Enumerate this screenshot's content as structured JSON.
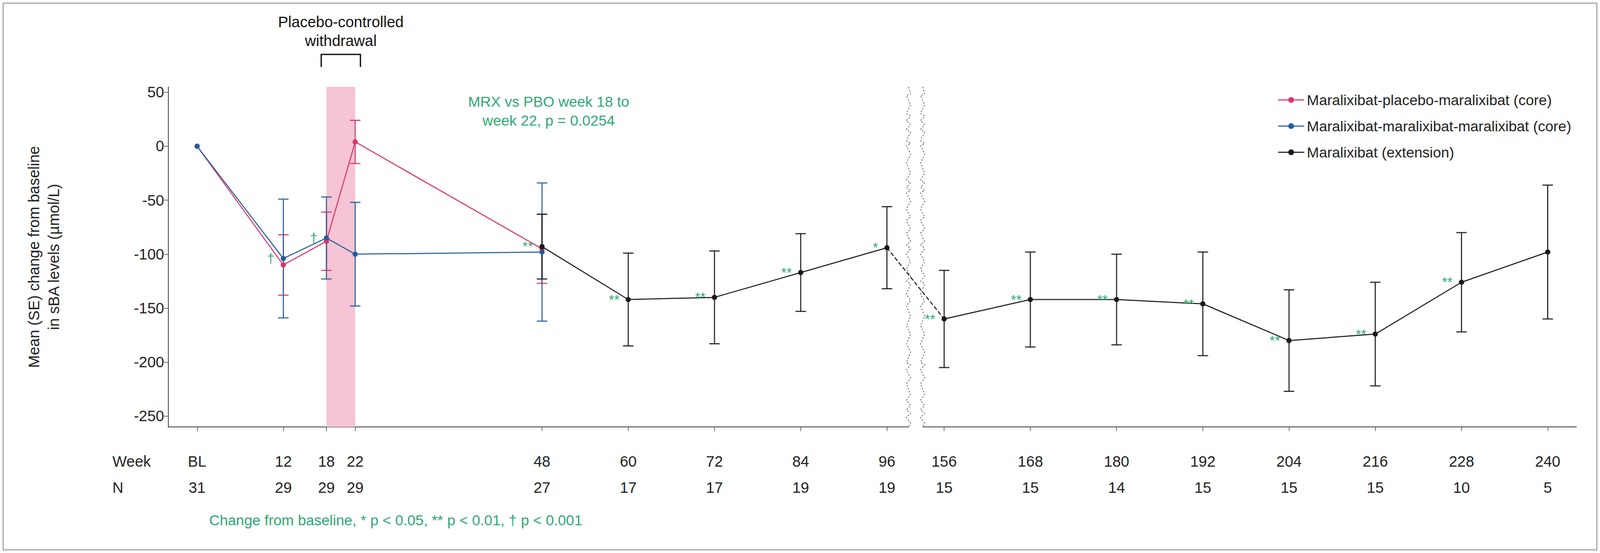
{
  "chart_data": {
    "type": "line",
    "ylabel": "Mean (SE) change from baseline\nin sBA levels (µmol/L)",
    "xlabel": "Week",
    "n_label": "N",
    "n": [
      31,
      29,
      29,
      29,
      27,
      17,
      17,
      19,
      19,
      15,
      15,
      14,
      15,
      15,
      15,
      10,
      5
    ],
    "xlim": [
      -4,
      244
    ],
    "xticks": [
      {
        "value": 0,
        "label": "BL"
      },
      12,
      18,
      22,
      48,
      60,
      72,
      84,
      96,
      156,
      168,
      180,
      192,
      204,
      216,
      228,
      240
    ],
    "xbreak": [
      99,
      153
    ],
    "ylim": [
      -260,
      55
    ],
    "yticks": [
      50,
      0,
      -50,
      -100,
      -150,
      -200,
      -250
    ],
    "grid": false,
    "legend": "upper right",
    "marker": "circle",
    "shaded_region": {
      "x": [
        18,
        22
      ],
      "label": "Placebo-controlled\nwithdrawal"
    },
    "annotations": [
      "MRX vs PBO week 18 to\nweek 22, p = 0.0254"
    ],
    "footnote": "Change from baseline, * p < 0.05, ** p < 0.01, † p < 0.001",
    "series": [
      {
        "name": "Maralixibat-placebo-maralixibat (core)",
        "color": "#d9336b",
        "x": [
          0,
          12,
          18,
          22,
          48
        ],
        "values": [
          0,
          -110,
          -88,
          4,
          -95
        ],
        "se": [
          null,
          28,
          27,
          20,
          32
        ],
        "significance": [
          null,
          null,
          null,
          null,
          null
        ]
      },
      {
        "name": "Maralixibat-maralixibat-maralixibat (core)",
        "color": "#255d9c",
        "x": [
          0,
          12,
          18,
          22,
          48
        ],
        "values": [
          0,
          -104,
          -85,
          -100,
          -98
        ],
        "se": [
          null,
          55,
          38,
          48,
          64
        ],
        "significance": [
          null,
          "†",
          "†",
          null,
          null
        ]
      },
      {
        "name": "Maralixibat (extension)",
        "color": "#1a1a1a",
        "x": [
          48,
          60,
          72,
          84,
          96,
          156,
          168,
          180,
          192,
          204,
          216,
          228,
          240
        ],
        "values": [
          -93,
          -142,
          -140,
          -117,
          -94,
          -160,
          -142,
          -142,
          -146,
          -180,
          -174,
          -126,
          -98
        ],
        "se": [
          30,
          43,
          43,
          36,
          38,
          45,
          44,
          42,
          48,
          47,
          48,
          46,
          62
        ],
        "significance": [
          "**",
          "**",
          "**",
          "**",
          "*",
          "**",
          "**",
          "**",
          "**",
          "**",
          "**",
          "**",
          null
        ]
      }
    ]
  }
}
